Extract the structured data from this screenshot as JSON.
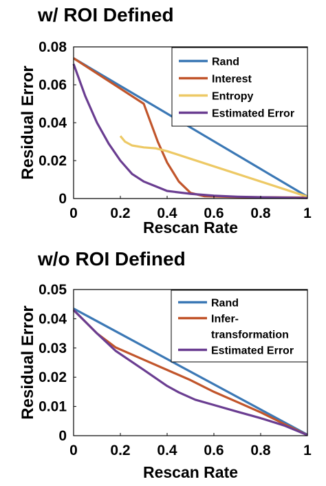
{
  "chart_data": [
    {
      "type": "line",
      "panel_title": "w/ ROI Defined",
      "xlabel": "Rescan Rate",
      "ylabel": "Residual Error",
      "xlim": [
        0,
        1
      ],
      "ylim": [
        0,
        0.08
      ],
      "xticks": [
        0,
        0.2,
        0.4,
        0.6,
        0.8,
        1
      ],
      "xtick_labels": [
        "0",
        "0.2",
        "0.4",
        "0.6",
        "0.8",
        "1"
      ],
      "yticks": [
        0,
        0.02,
        0.04,
        0.06,
        0.08
      ],
      "ytick_labels": [
        "0",
        "0.02",
        "0.04",
        "0.06",
        "0.08"
      ],
      "legend_position": "top-right",
      "grid": false,
      "series": [
        {
          "name": "Rand",
          "color": "#3B78B5",
          "points": [
            [
              0,
              0.074
            ],
            [
              1,
              0.001
            ]
          ]
        },
        {
          "name": "Interest",
          "color": "#C1552B",
          "points": [
            [
              0,
              0.074
            ],
            [
              0.3,
              0.05
            ],
            [
              0.33,
              0.04
            ],
            [
              0.36,
              0.03
            ],
            [
              0.4,
              0.019
            ],
            [
              0.45,
              0.009
            ],
            [
              0.5,
              0.003
            ],
            [
              0.56,
              0.0012
            ],
            [
              0.7,
              0.0008
            ],
            [
              1,
              0.0005
            ]
          ]
        },
        {
          "name": "Entropy",
          "color": "#EDC965",
          "points": [
            [
              0.2,
              0.033
            ],
            [
              0.22,
              0.03
            ],
            [
              0.25,
              0.028
            ],
            [
              0.3,
              0.027
            ],
            [
              0.35,
              0.0265
            ],
            [
              0.4,
              0.025
            ],
            [
              0.5,
              0.021
            ],
            [
              0.6,
              0.017
            ],
            [
              0.7,
              0.013
            ],
            [
              0.8,
              0.009
            ],
            [
              0.9,
              0.005
            ],
            [
              1,
              0.001
            ]
          ]
        },
        {
          "name": "Estimated Error",
          "color": "#6A3D91",
          "points": [
            [
              0,
              0.071
            ],
            [
              0.05,
              0.054
            ],
            [
              0.1,
              0.04
            ],
            [
              0.15,
              0.029
            ],
            [
              0.2,
              0.02
            ],
            [
              0.25,
              0.013
            ],
            [
              0.3,
              0.009
            ],
            [
              0.35,
              0.0065
            ],
            [
              0.4,
              0.004
            ],
            [
              0.5,
              0.0025
            ],
            [
              0.6,
              0.0015
            ],
            [
              0.7,
              0.001
            ],
            [
              0.85,
              0.0006
            ],
            [
              1,
              0.0003
            ]
          ]
        }
      ]
    },
    {
      "type": "line",
      "panel_title": "w/o ROI Defined",
      "xlabel": "Rescan Rate",
      "ylabel": "Residual Error",
      "xlim": [
        0,
        1
      ],
      "ylim": [
        0,
        0.05
      ],
      "xticks": [
        0,
        0.2,
        0.4,
        0.6,
        0.8,
        1
      ],
      "xtick_labels": [
        "0",
        "0.2",
        "0.4",
        "0.6",
        "0.8",
        "1"
      ],
      "yticks": [
        0,
        0.01,
        0.02,
        0.03,
        0.04,
        0.05
      ],
      "ytick_labels": [
        "0",
        "0.01",
        "0.02",
        "0.03",
        "0.04",
        "0.05"
      ],
      "legend_position": "top-right",
      "grid": false,
      "series": [
        {
          "name": "Rand",
          "color": "#3B78B5",
          "points": [
            [
              0,
              0.0435
            ],
            [
              1,
              0.0003
            ]
          ]
        },
        {
          "name": "Infer-transformation",
          "legend_lines": [
            "Infer-",
            "transformation"
          ],
          "color": "#C1552B",
          "points": [
            [
              0,
              0.043
            ],
            [
              0.1,
              0.035
            ],
            [
              0.18,
              0.0302
            ],
            [
              0.3,
              0.026
            ],
            [
              0.4,
              0.0225
            ],
            [
              0.5,
              0.019
            ],
            [
              0.6,
              0.015
            ],
            [
              0.7,
              0.0115
            ],
            [
              0.8,
              0.008
            ],
            [
              0.9,
              0.004
            ],
            [
              1,
              0.0002
            ]
          ]
        },
        {
          "name": "Estimated Error",
          "color": "#6A3D91",
          "points": [
            [
              0,
              0.043
            ],
            [
              0.1,
              0.035
            ],
            [
              0.18,
              0.029
            ],
            [
              0.3,
              0.0225
            ],
            [
              0.4,
              0.017
            ],
            [
              0.45,
              0.0148
            ],
            [
              0.52,
              0.0123
            ],
            [
              0.6,
              0.0105
            ],
            [
              0.7,
              0.0082
            ],
            [
              0.8,
              0.006
            ],
            [
              0.9,
              0.0035
            ],
            [
              1,
              0.0002
            ]
          ]
        }
      ]
    }
  ]
}
